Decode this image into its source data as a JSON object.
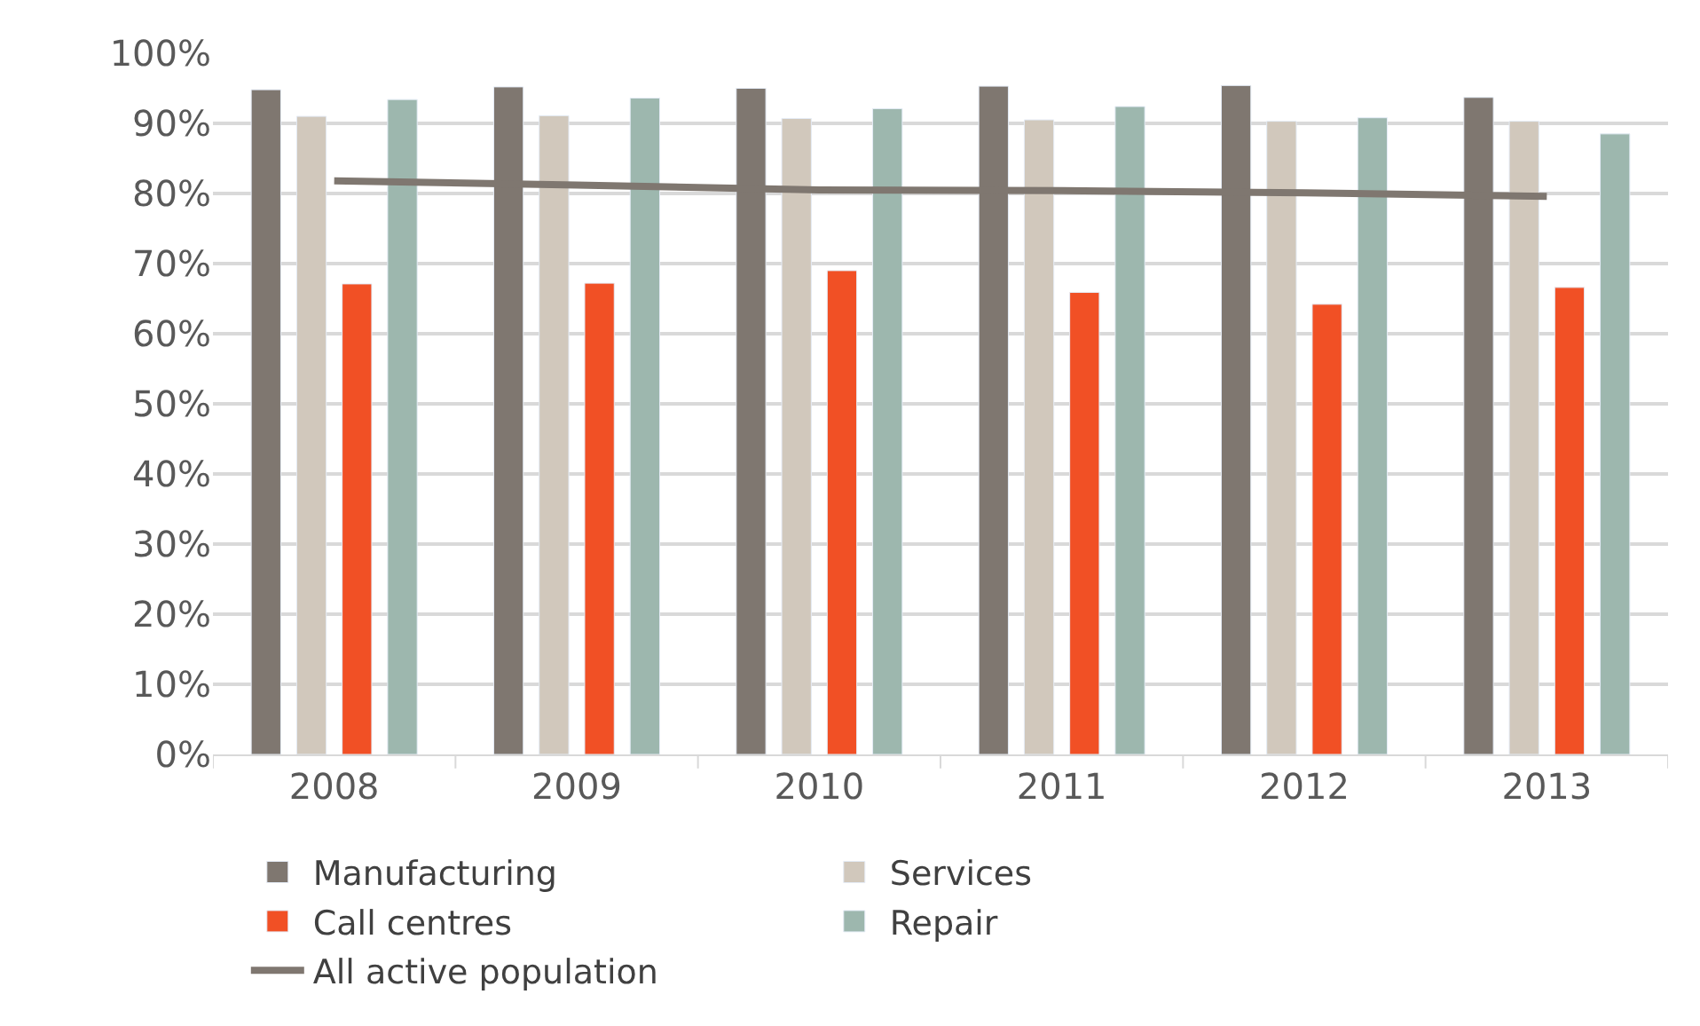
{
  "chart_data": {
    "type": "bar",
    "categories": [
      "2008",
      "2009",
      "2010",
      "2011",
      "2012",
      "2013"
    ],
    "series": [
      {
        "name": "Manufacturing",
        "color": "#7f7770",
        "values": [
          94.8,
          95.2,
          95.0,
          95.3,
          95.4,
          93.7
        ]
      },
      {
        "name": "Services",
        "color": "#d1c8bc",
        "values": [
          91.0,
          91.1,
          90.7,
          90.5,
          90.3,
          90.3
        ]
      },
      {
        "name": "Call centres",
        "color": "#f15025",
        "values": [
          67.1,
          67.2,
          69.0,
          65.9,
          64.2,
          66.6
        ]
      },
      {
        "name": "Repair",
        "color": "#9db7ae",
        "values": [
          93.4,
          93.6,
          92.1,
          92.4,
          90.8,
          88.5
        ]
      },
      {
        "name": "All active population",
        "color": "#7f7770",
        "type": "line",
        "values": [
          81.8,
          81.2,
          80.5,
          80.4,
          80.1,
          79.6
        ]
      }
    ],
    "ylim": [
      0,
      100
    ],
    "yticks": [
      {
        "value": 0,
        "label": "0%"
      },
      {
        "value": 10,
        "label": "10%"
      },
      {
        "value": 20,
        "label": "20%"
      },
      {
        "value": 30,
        "label": "30%"
      },
      {
        "value": 40,
        "label": "40%"
      },
      {
        "value": 50,
        "label": "50%"
      },
      {
        "value": 60,
        "label": "60%"
      },
      {
        "value": 70,
        "label": "70%"
      },
      {
        "value": 80,
        "label": "80%"
      },
      {
        "value": 90,
        "label": "90%"
      },
      {
        "value": 100,
        "label": "100%"
      }
    ],
    "grid": "y",
    "legend": "bottom"
  }
}
